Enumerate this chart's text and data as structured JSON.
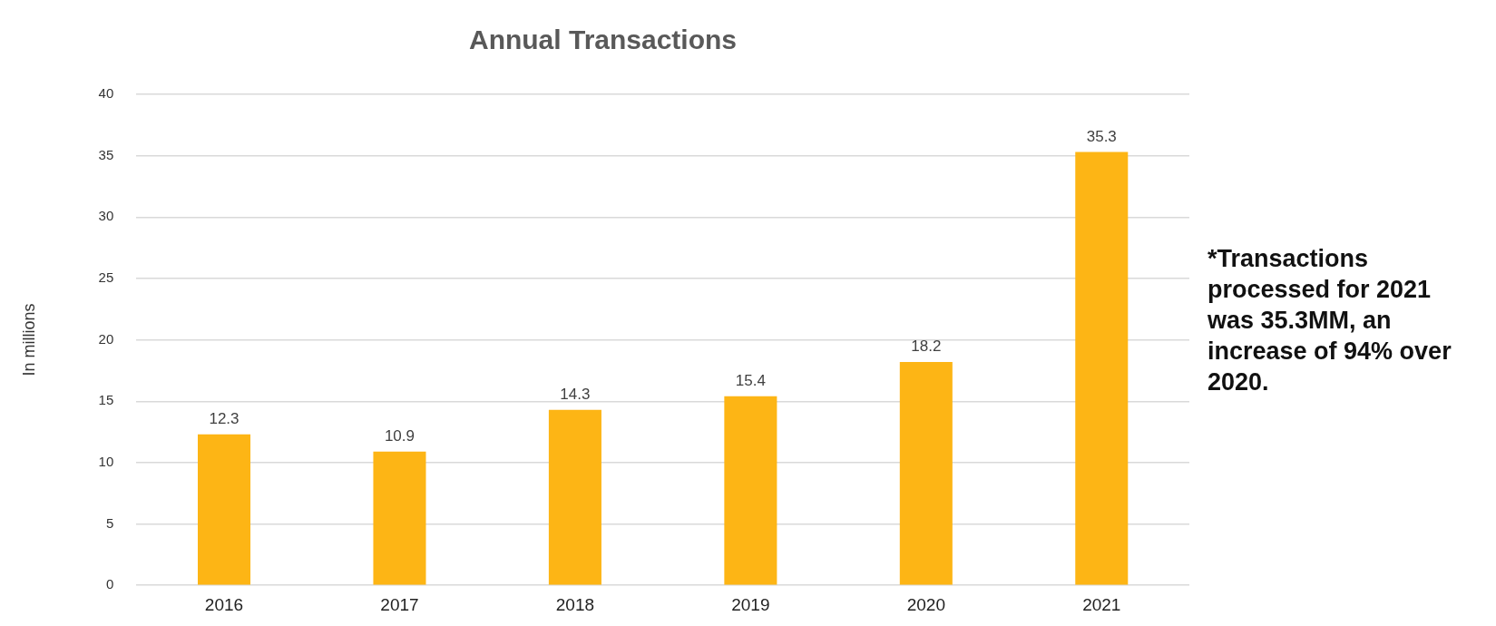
{
  "chart_data": {
    "type": "bar",
    "title": "Annual Transactions",
    "ylabel": "In millions",
    "categories": [
      "2016",
      "2017",
      "2018",
      "2019",
      "2020",
      "2021"
    ],
    "values": [
      12.3,
      10.9,
      14.3,
      15.4,
      18.2,
      35.3
    ],
    "color": "#fdb515",
    "ylim": [
      0,
      40
    ],
    "yticks": [
      0,
      5,
      10,
      15,
      20,
      25,
      30,
      35,
      40
    ],
    "grid": "y",
    "legend": false,
    "data_labels": true,
    "annotations": [
      "*Transactions processed for 2021 was 35.3MM, an increase of 94% over 2020."
    ]
  }
}
